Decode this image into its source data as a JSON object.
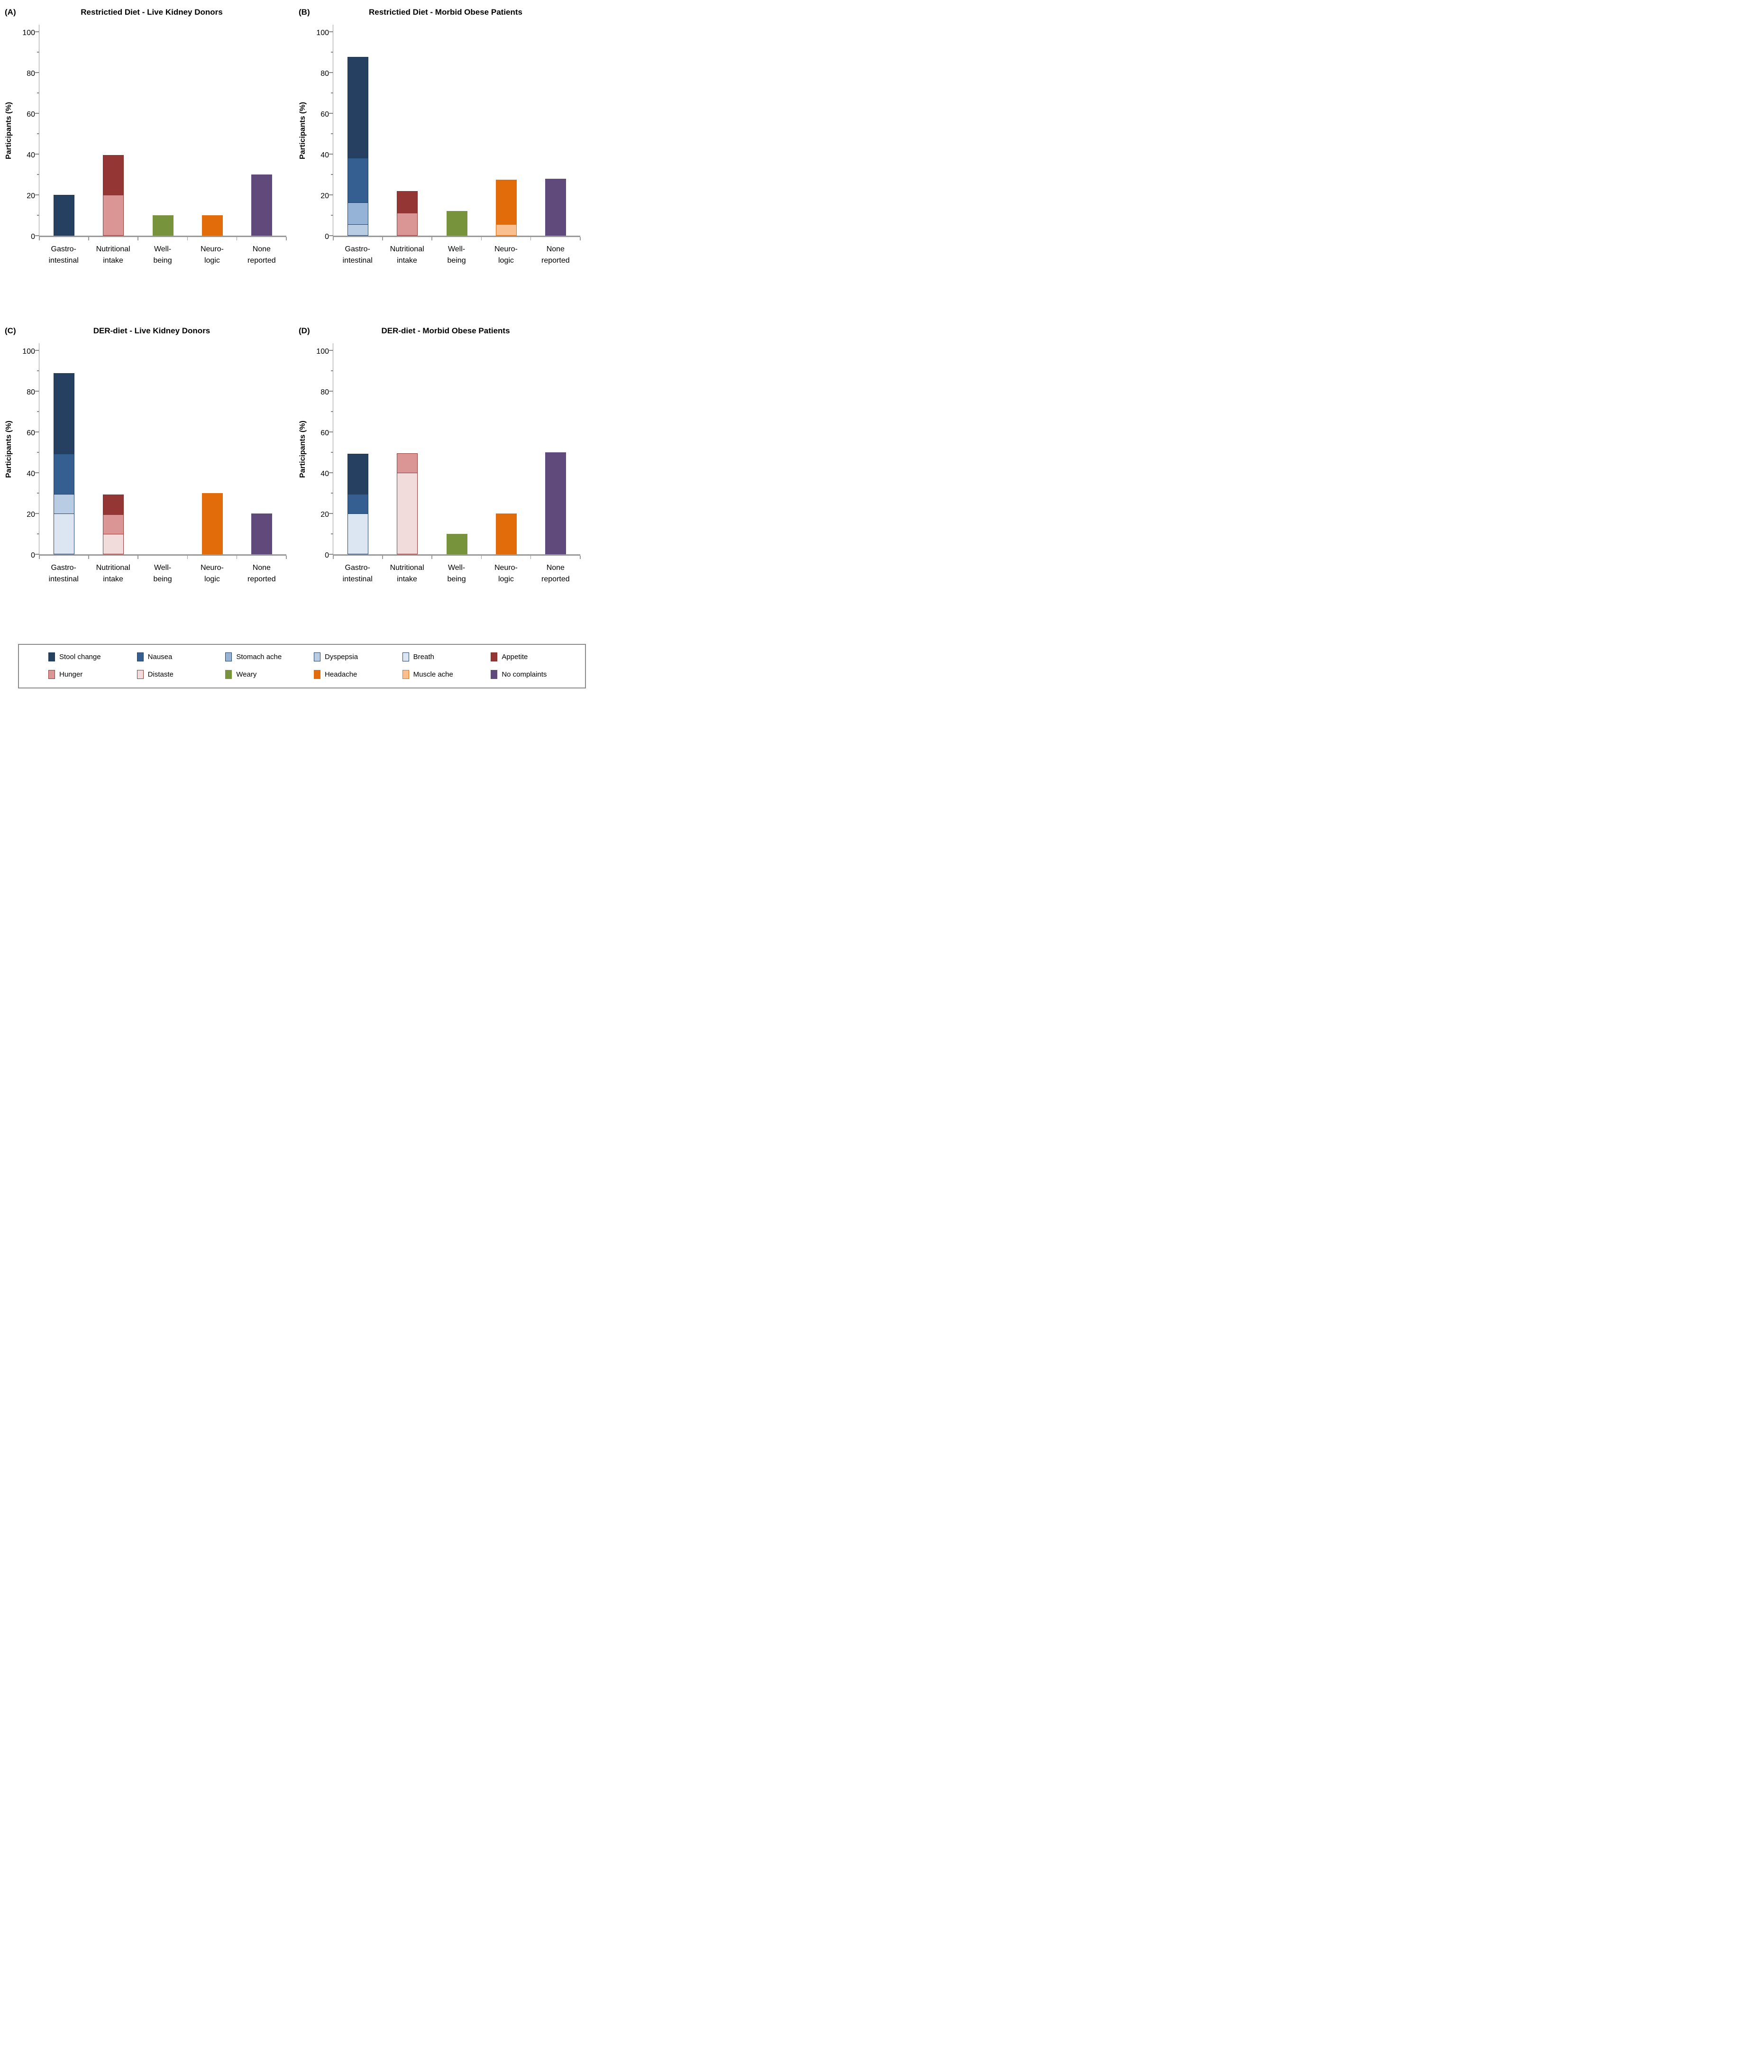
{
  "layout_colors": {
    "axis": "#9A9A9A",
    "tick": "#8A8A8A",
    "legend_border": "#8A8A8A",
    "background": "#FFFFFF"
  },
  "series_styles": {
    "Stool change": {
      "fill": "#254061",
      "border": "#1F3752"
    },
    "Nausea": {
      "fill": "#365F91",
      "border": "#254061"
    },
    "Stomach ache": {
      "fill": "#95B3D7",
      "border": "#254061"
    },
    "Dyspepsia": {
      "fill": "#B8CCE4",
      "border": "#254061"
    },
    "Breath": {
      "fill": "#DCE6F2",
      "border": "#254061"
    },
    "Appetite": {
      "fill": "#943634",
      "border": "#7E2D2B"
    },
    "Hunger": {
      "fill": "#D99694",
      "border": "#943634"
    },
    "Distaste": {
      "fill": "#F2DCDB",
      "border": "#943634"
    },
    "Weary": {
      "fill": "#77933C",
      "border": "#77933C"
    },
    "Headache": {
      "fill": "#E36C0A",
      "border": "#E36C0A"
    },
    "Muscle ache": {
      "fill": "#FABF8F",
      "border": "#E36C0A"
    },
    "No complaints": {
      "fill": "#604A7B",
      "border": "#604A7B"
    }
  },
  "legend": {
    "items": [
      {
        "label": "Stool change"
      },
      {
        "label": "Nausea"
      },
      {
        "label": "Stomach ache"
      },
      {
        "label": "Dyspepsia"
      },
      {
        "label": "Breath"
      },
      {
        "label": "Appetite"
      },
      {
        "label": "Hunger"
      },
      {
        "label": "Distaste"
      },
      {
        "label": "Weary"
      },
      {
        "label": "Headache"
      },
      {
        "label": "Muscle ache"
      },
      {
        "label": "No complaints"
      }
    ]
  },
  "chart_data": [
    {
      "panel_letter": "(A)",
      "title": "Restrictied Diet - Live Kidney Donors",
      "type": "bar",
      "stacked": true,
      "ylabel": "Participants (%)",
      "ylim": [
        0,
        100
      ],
      "yticks_major": [
        0,
        20,
        40,
        60,
        80,
        100
      ],
      "yticks_minor": [
        10,
        30,
        50,
        70,
        90
      ],
      "grid": false,
      "categories": [
        "Gastro-intestinal",
        "Nutritional intake",
        "Well-being",
        "Neuro-logic",
        "None reported"
      ],
      "category_labels": [
        [
          "Gastro-",
          "intestinal"
        ],
        [
          "Nutritional",
          "intake"
        ],
        [
          "Well-",
          "being"
        ],
        [
          "Neuro-",
          "logic"
        ],
        [
          "None",
          "reported"
        ]
      ],
      "bars": [
        {
          "category": "Gastro-intestinal",
          "segments": [
            {
              "series": "Stool change",
              "value": 20
            }
          ]
        },
        {
          "category": "Nutritional intake",
          "segments": [
            {
              "series": "Hunger",
              "value": 20
            },
            {
              "series": "Appetite",
              "value": 20
            }
          ]
        },
        {
          "category": "Well-being",
          "segments": [
            {
              "series": "Weary",
              "value": 10
            }
          ]
        },
        {
          "category": "Neuro-logic",
          "segments": [
            {
              "series": "Headache",
              "value": 10
            }
          ]
        },
        {
          "category": "None reported",
          "segments": [
            {
              "series": "No complaints",
              "value": 30
            }
          ]
        }
      ]
    },
    {
      "panel_letter": "(B)",
      "title": "Restrictied Diet - Morbid Obese Patients",
      "type": "bar",
      "stacked": true,
      "ylabel": "Participants (%)",
      "ylim": [
        0,
        100
      ],
      "yticks_major": [
        0,
        20,
        40,
        60,
        80,
        100
      ],
      "yticks_minor": [
        10,
        30,
        50,
        70,
        90
      ],
      "grid": false,
      "categories": [
        "Gastro-intestinal",
        "Nutritional intake",
        "Well-being",
        "Neuro-logic",
        "None reported"
      ],
      "category_labels": [
        [
          "Gastro-",
          "intestinal"
        ],
        [
          "Nutritional",
          "intake"
        ],
        [
          "Well-",
          "being"
        ],
        [
          "Neuro-",
          "logic"
        ],
        [
          "None",
          "reported"
        ]
      ],
      "bars": [
        {
          "category": "Gastro-intestinal",
          "segments": [
            {
              "series": "Dyspepsia",
              "value": 5.6
            },
            {
              "series": "Stomach ache",
              "value": 11.1
            },
            {
              "series": "Nausea",
              "value": 22.2
            },
            {
              "series": "Stool change",
              "value": 50
            }
          ]
        },
        {
          "category": "Nutritional intake",
          "segments": [
            {
              "series": "Hunger",
              "value": 11.1
            },
            {
              "series": "Appetite",
              "value": 11.1
            }
          ]
        },
        {
          "category": "Well-being",
          "segments": [
            {
              "series": "Weary",
              "value": 12
            }
          ]
        },
        {
          "category": "Neuro-logic",
          "segments": [
            {
              "series": "Muscle ache",
              "value": 5.6
            },
            {
              "series": "Headache",
              "value": 22.2
            }
          ]
        },
        {
          "category": "None reported",
          "segments": [
            {
              "series": "No complaints",
              "value": 27.8
            }
          ]
        }
      ]
    },
    {
      "panel_letter": "(C)",
      "title": "DER-diet - Live Kidney Donors",
      "type": "bar",
      "stacked": true,
      "ylabel": "Participants (%)",
      "ylim": [
        0,
        100
      ],
      "yticks_major": [
        0,
        20,
        40,
        60,
        80,
        100
      ],
      "yticks_minor": [
        10,
        30,
        50,
        70,
        90
      ],
      "grid": false,
      "categories": [
        "Gastro-intestinal",
        "Nutritional intake",
        "Well-being",
        "Neuro-logic",
        "None reported"
      ],
      "category_labels": [
        [
          "Gastro-",
          "intestinal"
        ],
        [
          "Nutritional",
          "intake"
        ],
        [
          "Well-",
          "being"
        ],
        [
          "Neuro-",
          "logic"
        ],
        [
          "None",
          "reported"
        ]
      ],
      "bars": [
        {
          "category": "Gastro-intestinal",
          "segments": [
            {
              "series": "Breath",
              "value": 20
            },
            {
              "series": "Dyspepsia",
              "value": 10
            },
            {
              "series": "Nausea",
              "value": 20
            },
            {
              "series": "Stool change",
              "value": 40
            }
          ]
        },
        {
          "category": "Nutritional intake",
          "segments": [
            {
              "series": "Distaste",
              "value": 10
            },
            {
              "series": "Hunger",
              "value": 10
            },
            {
              "series": "Appetite",
              "value": 10
            }
          ]
        },
        {
          "category": "Well-being",
          "segments": []
        },
        {
          "category": "Neuro-logic",
          "segments": [
            {
              "series": "Headache",
              "value": 30
            }
          ]
        },
        {
          "category": "None reported",
          "segments": [
            {
              "series": "No complaints",
              "value": 20
            }
          ]
        }
      ]
    },
    {
      "panel_letter": "(D)",
      "title": "DER-diet - Morbid Obese Patients",
      "type": "bar",
      "stacked": true,
      "ylabel": "Participants (%)",
      "ylim": [
        0,
        100
      ],
      "yticks_major": [
        0,
        20,
        40,
        60,
        80,
        100
      ],
      "yticks_minor": [
        10,
        30,
        50,
        70,
        90
      ],
      "grid": false,
      "categories": [
        "Gastro-intestinal",
        "Nutritional intake",
        "Well-being",
        "Neuro-logic",
        "None reported"
      ],
      "category_labels": [
        [
          "Gastro-",
          "intestinal"
        ],
        [
          "Nutritional",
          "intake"
        ],
        [
          "Well-",
          "being"
        ],
        [
          "Neuro-",
          "logic"
        ],
        [
          "None",
          "reported"
        ]
      ],
      "bars": [
        {
          "category": "Gastro-intestinal",
          "segments": [
            {
              "series": "Breath",
              "value": 20
            },
            {
              "series": "Nausea",
              "value": 10
            },
            {
              "series": "Stool change",
              "value": 20
            }
          ]
        },
        {
          "category": "Nutritional intake",
          "segments": [
            {
              "series": "Distaste",
              "value": 40
            },
            {
              "series": "Hunger",
              "value": 10
            }
          ]
        },
        {
          "category": "Well-being",
          "segments": [
            {
              "series": "Weary",
              "value": 10
            }
          ]
        },
        {
          "category": "Neuro-logic",
          "segments": [
            {
              "series": "Headache",
              "value": 20
            }
          ]
        },
        {
          "category": "None reported",
          "segments": [
            {
              "series": "No complaints",
              "value": 50
            }
          ]
        }
      ]
    }
  ]
}
